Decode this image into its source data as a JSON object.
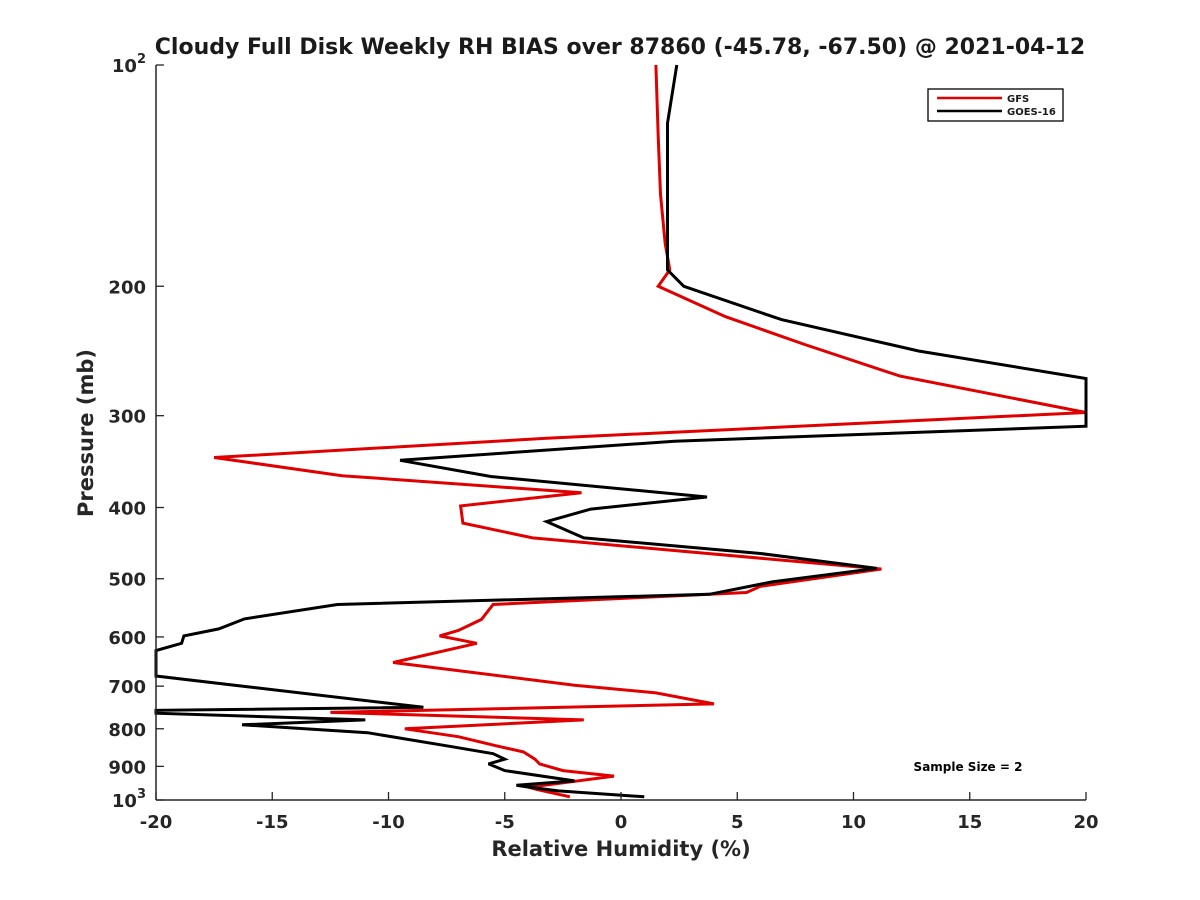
{
  "chart_data": {
    "type": "line",
    "title": "Cloudy Full Disk Weekly RH BIAS over 87860 (-45.78, -67.50) @ 2021-04-12",
    "xlabel": "Relative Humidity (%)",
    "ylabel": "Pressure (mb)",
    "xlim": [
      -20,
      20
    ],
    "ylim": [
      100,
      1000
    ],
    "y_scale": "log",
    "y_reversed": true,
    "grid": false,
    "legend_position": "top-right",
    "x_ticks": [
      -20,
      -15,
      -10,
      -5,
      0,
      5,
      10,
      15,
      20
    ],
    "x_tick_labels": [
      "-20",
      "-15",
      "-10",
      "-5",
      "0",
      "5",
      "10",
      "15",
      "20"
    ],
    "y_ticks": [
      100,
      200,
      300,
      400,
      500,
      600,
      700,
      800,
      900,
      1000
    ],
    "y_tick_labels": [
      {
        "base": "10",
        "sup": "2"
      },
      {
        "base": "200",
        "sup": ""
      },
      {
        "base": "300",
        "sup": ""
      },
      {
        "base": "400",
        "sup": ""
      },
      {
        "base": "500",
        "sup": ""
      },
      {
        "base": "600",
        "sup": ""
      },
      {
        "base": "700",
        "sup": ""
      },
      {
        "base": "800",
        "sup": ""
      },
      {
        "base": "900",
        "sup": ""
      },
      {
        "base": "10",
        "sup": "3"
      }
    ],
    "series": [
      {
        "name": "GFS",
        "color": "#e00000",
        "points": [
          [
            1.5,
            100
          ],
          [
            1.6,
            125
          ],
          [
            1.7,
            150
          ],
          [
            1.9,
            175
          ],
          [
            2.1,
            190
          ],
          [
            1.6,
            200
          ],
          [
            4.5,
            220
          ],
          [
            7.9,
            240
          ],
          [
            12.0,
            265
          ],
          [
            20.0,
            297
          ],
          [
            -3.2,
            322
          ],
          [
            -17.5,
            342
          ],
          [
            -12.0,
            362
          ],
          [
            -1.7,
            382
          ],
          [
            -6.9,
            398
          ],
          [
            -6.8,
            420
          ],
          [
            -3.8,
            440
          ],
          [
            11.2,
            485
          ],
          [
            6.0,
            512
          ],
          [
            5.4,
            522
          ],
          [
            -5.5,
            542
          ],
          [
            -6.0,
            568
          ],
          [
            -7.0,
            588
          ],
          [
            -7.8,
            598
          ],
          [
            -6.2,
            612
          ],
          [
            -9.8,
            650
          ],
          [
            -2.0,
            698
          ],
          [
            1.5,
            715
          ],
          [
            4.0,
            740
          ],
          [
            -12.5,
            760
          ],
          [
            -1.6,
            778
          ],
          [
            -9.3,
            800
          ],
          [
            -7.0,
            820
          ],
          [
            -5.3,
            845
          ],
          [
            -4.2,
            860
          ],
          [
            -3.7,
            880
          ],
          [
            -3.5,
            893
          ],
          [
            -2.5,
            912
          ],
          [
            -0.3,
            928
          ],
          [
            -3.3,
            955
          ],
          [
            -4.0,
            960
          ],
          [
            -3.6,
            968
          ],
          [
            -2.2,
            990
          ]
        ]
      },
      {
        "name": "GOES-16",
        "color": "#000000",
        "points": [
          [
            2.4,
            100
          ],
          [
            2.0,
            120
          ],
          [
            2.0,
            150
          ],
          [
            2.0,
            190
          ],
          [
            2.7,
            200
          ],
          [
            6.9,
            222
          ],
          [
            12.8,
            245
          ],
          [
            20.0,
            267
          ],
          [
            20.0,
            310
          ],
          [
            2.3,
            325
          ],
          [
            -9.5,
            345
          ],
          [
            -5.6,
            363
          ],
          [
            3.7,
            387
          ],
          [
            -1.3,
            402
          ],
          [
            -3.2,
            418
          ],
          [
            -1.6,
            440
          ],
          [
            6.0,
            462
          ],
          [
            11.0,
            484
          ],
          [
            6.5,
            505
          ],
          [
            3.8,
            525
          ],
          [
            -12.2,
            542
          ],
          [
            -16.2,
            567
          ],
          [
            -17.3,
            585
          ],
          [
            -18.8,
            598
          ],
          [
            -18.9,
            612
          ],
          [
            -20.0,
            626
          ],
          [
            -20.0,
            678
          ],
          [
            -16.3,
            700
          ],
          [
            -8.5,
            748
          ],
          [
            -20.0,
            755
          ],
          [
            -20.0,
            762
          ],
          [
            -11.0,
            778
          ],
          [
            -16.3,
            790
          ],
          [
            -10.9,
            810
          ],
          [
            -7.4,
            845
          ],
          [
            -5.5,
            865
          ],
          [
            -5.0,
            880
          ],
          [
            -5.7,
            893
          ],
          [
            -5.0,
            912
          ],
          [
            -2.0,
            942
          ],
          [
            -4.5,
            955
          ],
          [
            -4.0,
            960
          ],
          [
            -2.7,
            972
          ],
          [
            1.0,
            990
          ]
        ]
      }
    ],
    "legend": [
      {
        "label": "GFS",
        "color": "#e00000"
      },
      {
        "label": "GOES-16",
        "color": "#000000"
      }
    ],
    "annotations": [
      {
        "text": "Sample Size = 2"
      }
    ]
  }
}
